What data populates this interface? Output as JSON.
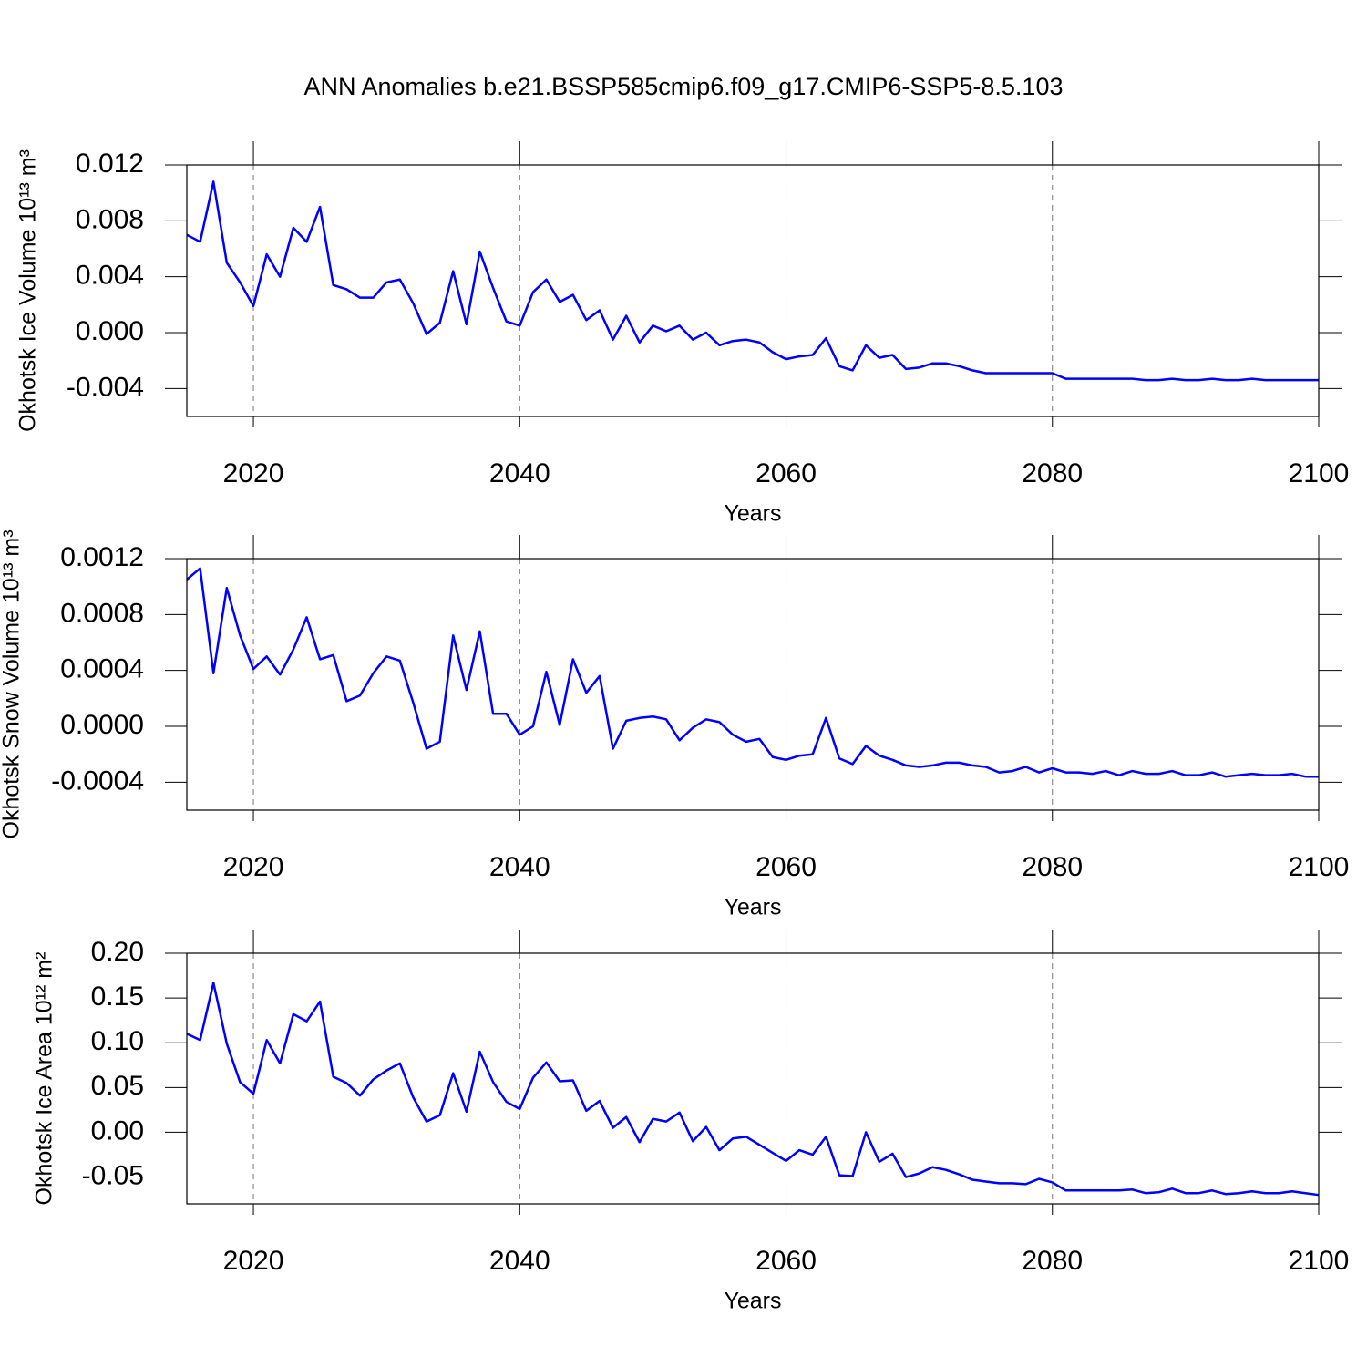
{
  "title": "ANN Anomalies b.e21.BSSP585cmip6.f09_g17.CMIP6-SSP5-8.5.103",
  "chart_data": [
    {
      "type": "line",
      "ylabel": "Okhotsk Ice Volume 10¹³ m³",
      "xlabel": "Years",
      "x": [
        2015,
        2016,
        2017,
        2018,
        2019,
        2020,
        2021,
        2022,
        2023,
        2024,
        2025,
        2026,
        2027,
        2028,
        2029,
        2030,
        2031,
        2032,
        2033,
        2034,
        2035,
        2036,
        2037,
        2038,
        2039,
        2040,
        2041,
        2042,
        2043,
        2044,
        2045,
        2046,
        2047,
        2048,
        2049,
        2050,
        2051,
        2052,
        2053,
        2054,
        2055,
        2056,
        2057,
        2058,
        2059,
        2060,
        2061,
        2062,
        2063,
        2064,
        2065,
        2066,
        2067,
        2068,
        2069,
        2070,
        2071,
        2072,
        2073,
        2074,
        2075,
        2076,
        2077,
        2078,
        2079,
        2080,
        2081,
        2082,
        2083,
        2084,
        2085,
        2086,
        2087,
        2088,
        2089,
        2090,
        2091,
        2092,
        2093,
        2094,
        2095,
        2096,
        2097,
        2098,
        2099,
        2100
      ],
      "series": [
        {
          "color": "#0000ff",
          "values": [
            0.007,
            0.0065,
            0.0108,
            0.005,
            0.0036,
            0.0019,
            0.0056,
            0.004,
            0.0075,
            0.0065,
            0.009,
            0.0034,
            0.0031,
            0.0025,
            0.0025,
            0.0036,
            0.0038,
            0.0021,
            -0.0001,
            0.0007,
            0.0044,
            0.0006,
            0.0058,
            0.0032,
            0.0008,
            0.0005,
            0.0029,
            0.0038,
            0.0022,
            0.0027,
            0.0009,
            0.0016,
            -0.0005,
            0.0012,
            -0.0007,
            0.0005,
            0.0001,
            0.0005,
            -0.0005,
            0.0,
            -0.0009,
            -0.0006,
            -0.0005,
            -0.0007,
            -0.0014,
            -0.0019,
            -0.0017,
            -0.0016,
            -0.0004,
            -0.0024,
            -0.0027,
            -0.0009,
            -0.0018,
            -0.0016,
            -0.0026,
            -0.0025,
            -0.0022,
            -0.0022,
            -0.0024,
            -0.0027,
            -0.0029,
            -0.0029,
            -0.0029,
            -0.0029,
            -0.0029,
            -0.0029,
            -0.0033,
            -0.0033,
            -0.0033,
            -0.0033,
            -0.0033,
            -0.0033,
            -0.0034,
            -0.0034,
            -0.0033,
            -0.0034,
            -0.0034,
            -0.0033,
            -0.0034,
            -0.0034,
            -0.0033,
            -0.0034,
            -0.0034,
            -0.0034,
            -0.0034,
            -0.0034
          ]
        }
      ],
      "xlim": [
        2015,
        2100
      ],
      "xticks": [
        2020,
        2040,
        2060,
        2080,
        2100
      ],
      "ylim": [
        -0.006,
        0.012
      ],
      "yticks": [
        0.012,
        0.008,
        0.004,
        {
          "value": 0,
          "label": "0.000"
        },
        -0.004
      ],
      "grid": "x"
    },
    {
      "type": "line",
      "ylabel": "Okhotsk Snow Volume 10¹³ m³",
      "xlabel": "Years",
      "x": [
        2015,
        2016,
        2017,
        2018,
        2019,
        2020,
        2021,
        2022,
        2023,
        2024,
        2025,
        2026,
        2027,
        2028,
        2029,
        2030,
        2031,
        2032,
        2033,
        2034,
        2035,
        2036,
        2037,
        2038,
        2039,
        2040,
        2041,
        2042,
        2043,
        2044,
        2045,
        2046,
        2047,
        2048,
        2049,
        2050,
        2051,
        2052,
        2053,
        2054,
        2055,
        2056,
        2057,
        2058,
        2059,
        2060,
        2061,
        2062,
        2063,
        2064,
        2065,
        2066,
        2067,
        2068,
        2069,
        2070,
        2071,
        2072,
        2073,
        2074,
        2075,
        2076,
        2077,
        2078,
        2079,
        2080,
        2081,
        2082,
        2083,
        2084,
        2085,
        2086,
        2087,
        2088,
        2089,
        2090,
        2091,
        2092,
        2093,
        2094,
        2095,
        2096,
        2097,
        2098,
        2099,
        2100
      ],
      "series": [
        {
          "color": "#0000ff",
          "values": [
            0.00105,
            0.00113,
            0.00038,
            0.00099,
            0.00065,
            0.00041,
            0.0005,
            0.00037,
            0.00055,
            0.00078,
            0.00048,
            0.00051,
            0.00018,
            0.00022,
            0.00038,
            0.0005,
            0.00047,
            0.00017,
            -0.00016,
            -0.00011,
            0.00065,
            0.00026,
            0.00068,
            9e-05,
            9e-05,
            -6e-05,
            0.0,
            0.00039,
            1e-05,
            0.00048,
            0.00024,
            0.00036,
            -0.00016,
            4e-05,
            6e-05,
            7e-05,
            5e-05,
            -0.0001,
            -1e-05,
            5e-05,
            3e-05,
            -6e-05,
            -0.00011,
            -9e-05,
            -0.00022,
            -0.00024,
            -0.00021,
            -0.0002,
            6e-05,
            -0.00023,
            -0.00027,
            -0.00014,
            -0.00021,
            -0.00024,
            -0.00028,
            -0.00029,
            -0.00028,
            -0.00026,
            -0.00026,
            -0.00028,
            -0.00029,
            -0.00033,
            -0.00032,
            -0.00029,
            -0.00033,
            -0.0003,
            -0.00033,
            -0.00033,
            -0.00034,
            -0.00032,
            -0.00035,
            -0.00032,
            -0.00034,
            -0.00034,
            -0.00032,
            -0.00035,
            -0.00035,
            -0.00033,
            -0.00036,
            -0.00035,
            -0.00034,
            -0.00035,
            -0.00035,
            -0.00034,
            -0.00036,
            -0.00036
          ]
        }
      ],
      "xlim": [
        2015,
        2100
      ],
      "xticks": [
        2020,
        2040,
        2060,
        2080,
        2100
      ],
      "ylim": [
        -0.0006,
        0.0012
      ],
      "yticks": [
        0.0012,
        0.0008,
        0.0004,
        {
          "value": 0,
          "label": "0.0000"
        },
        -0.0004
      ],
      "grid": "x"
    },
    {
      "type": "line",
      "ylabel": "Okhotsk Ice Area 10¹² m²",
      "xlabel": "Years",
      "x": [
        2015,
        2016,
        2017,
        2018,
        2019,
        2020,
        2021,
        2022,
        2023,
        2024,
        2025,
        2026,
        2027,
        2028,
        2029,
        2030,
        2031,
        2032,
        2033,
        2034,
        2035,
        2036,
        2037,
        2038,
        2039,
        2040,
        2041,
        2042,
        2043,
        2044,
        2045,
        2046,
        2047,
        2048,
        2049,
        2050,
        2051,
        2052,
        2053,
        2054,
        2055,
        2056,
        2057,
        2058,
        2059,
        2060,
        2061,
        2062,
        2063,
        2064,
        2065,
        2066,
        2067,
        2068,
        2069,
        2070,
        2071,
        2072,
        2073,
        2074,
        2075,
        2076,
        2077,
        2078,
        2079,
        2080,
        2081,
        2082,
        2083,
        2084,
        2085,
        2086,
        2087,
        2088,
        2089,
        2090,
        2091,
        2092,
        2093,
        2094,
        2095,
        2096,
        2097,
        2098,
        2099,
        2100
      ],
      "series": [
        {
          "color": "#0000ff",
          "values": [
            0.11,
            0.103,
            0.167,
            0.099,
            0.056,
            0.043,
            0.103,
            0.077,
            0.132,
            0.124,
            0.146,
            0.062,
            0.055,
            0.041,
            0.059,
            0.069,
            0.077,
            0.039,
            0.012,
            0.019,
            0.066,
            0.023,
            0.09,
            0.056,
            0.034,
            0.026,
            0.061,
            0.078,
            0.057,
            0.058,
            0.024,
            0.035,
            0.005,
            0.017,
            -0.011,
            0.015,
            0.012,
            0.022,
            -0.01,
            0.006,
            -0.02,
            -0.007,
            -0.005,
            -0.014,
            -0.023,
            -0.032,
            -0.02,
            -0.025,
            -0.005,
            -0.048,
            -0.049,
            0.0,
            -0.033,
            -0.024,
            -0.05,
            -0.046,
            -0.039,
            -0.042,
            -0.047,
            -0.053,
            -0.055,
            -0.057,
            -0.057,
            -0.058,
            -0.052,
            -0.056,
            -0.065,
            -0.065,
            -0.065,
            -0.065,
            -0.065,
            -0.064,
            -0.068,
            -0.067,
            -0.063,
            -0.068,
            -0.068,
            -0.065,
            -0.069,
            -0.068,
            -0.066,
            -0.068,
            -0.068,
            -0.066,
            -0.068,
            -0.07
          ]
        }
      ],
      "xlim": [
        2015,
        2100
      ],
      "xticks": [
        2020,
        2040,
        2060,
        2080,
        2100
      ],
      "ylim": [
        -0.08,
        0.2
      ],
      "yticks": [
        {
          "value": 0.2,
          "label": "0.20"
        },
        0.15,
        {
          "value": 0.1,
          "label": "0.10"
        },
        0.05,
        {
          "value": 0,
          "label": "0.00"
        },
        -0.05
      ],
      "grid": "x"
    }
  ]
}
